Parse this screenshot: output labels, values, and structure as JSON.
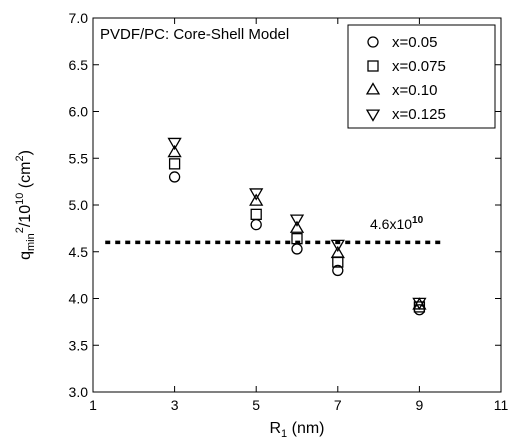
{
  "chart_data": {
    "type": "scatter",
    "title": "PVDF/PC:  Core-Shell Model",
    "xlabel": {
      "base": "R",
      "sub": "1",
      "rest": " (nm)"
    },
    "ylabel": {
      "q": "q",
      "sub": "min",
      "sup1": "2",
      "mid": "/10",
      "sup2": "10",
      "unit_open": " (cm",
      "sup3": "2",
      "unit_close": ")"
    },
    "xlim": [
      1,
      11
    ],
    "ylim": [
      3.0,
      7.0
    ],
    "x_ticks": [
      1,
      3,
      5,
      7,
      9,
      11
    ],
    "x_tick_labels": [
      "1",
      "3",
      "5",
      "7",
      "9",
      "11"
    ],
    "y_ticks": [
      3.0,
      3.5,
      4.0,
      4.5,
      5.0,
      5.5,
      6.0,
      6.5,
      7.0
    ],
    "y_tick_labels": [
      "3.0",
      "3.5",
      "4.0",
      "4.5",
      "5.0",
      "5.5",
      "6.0",
      "6.5",
      "7.0"
    ],
    "legend_position": "top-right",
    "series": [
      {
        "name": "x=0.05",
        "marker": "circle",
        "x": [
          3,
          5,
          6,
          7,
          9
        ],
        "y": [
          5.3,
          4.79,
          4.53,
          4.3,
          3.88
        ]
      },
      {
        "name": "x=0.075",
        "marker": "square",
        "x": [
          3,
          5,
          6,
          7,
          9
        ],
        "y": [
          5.44,
          4.9,
          4.64,
          4.39,
          3.91
        ]
      },
      {
        "name": "x=0.10",
        "marker": "triangle-up",
        "x": [
          3,
          5,
          6,
          7,
          9
        ],
        "y": [
          5.56,
          5.04,
          4.75,
          4.48,
          3.93
        ]
      },
      {
        "name": "x=0.125",
        "marker": "triangle-down",
        "x": [
          3,
          5,
          6,
          7,
          9
        ],
        "y": [
          5.67,
          5.13,
          4.85,
          4.58,
          3.96
        ]
      }
    ],
    "reference_line": {
      "y": 4.6,
      "x_range": [
        1.3,
        9.6
      ],
      "style": "dotted",
      "label": {
        "base": "4.6x10",
        "sup": "10"
      }
    }
  }
}
